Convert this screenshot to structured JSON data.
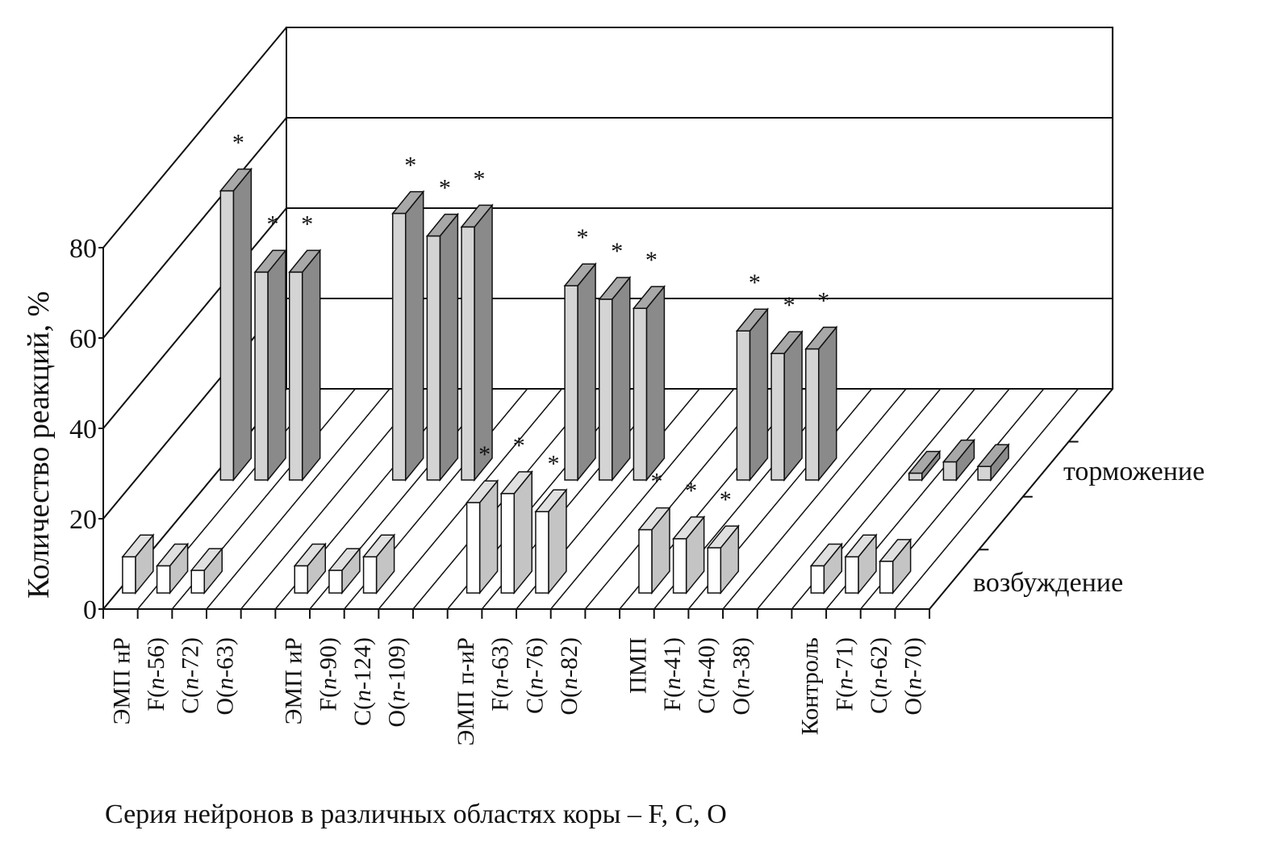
{
  "chart_data": {
    "type": "bar",
    "style": "3d-grouped",
    "ylabel": "Количество реакций, %",
    "xlabel": "Серия нейронов в различных областях коры – F, C, O",
    "ylim": [
      0,
      80
    ],
    "yticks": [
      "0",
      "20",
      "40",
      "60",
      "80"
    ],
    "grid": true,
    "groups": [
      {
        "name": "ЭМП нР",
        "labels": [
          "F(n-56)",
          "C(n-72)",
          "O(n-63)"
        ]
      },
      {
        "name": "ЭМП иР",
        "labels": [
          "F(n-90)",
          "C(n-124)",
          "O(n-109)"
        ]
      },
      {
        "name": "ЭМП п-иР",
        "labels": [
          "F(n-63)",
          "C(n-76)",
          "O(n-82)"
        ]
      },
      {
        "name": "ПМП",
        "labels": [
          "F(n-41)",
          "C(n-40)",
          "O(n-38)"
        ]
      },
      {
        "name": "Контроль",
        "labels": [
          "F(n-71)",
          "C(n-62)",
          "O(n-70)"
        ]
      }
    ],
    "series": [
      {
        "name": "возбуждение",
        "color": "#ffffff",
        "values": [
          [
            8,
            6,
            5
          ],
          [
            6,
            5,
            8
          ],
          [
            20,
            22,
            18
          ],
          [
            14,
            12,
            10
          ],
          [
            6,
            8,
            7
          ]
        ],
        "significant": [
          [
            false,
            false,
            false
          ],
          [
            false,
            false,
            false
          ],
          [
            true,
            true,
            true
          ],
          [
            true,
            true,
            true
          ],
          [
            false,
            false,
            false
          ]
        ]
      },
      {
        "name": "торможение",
        "color": "#d4d4d4",
        "values": [
          [
            64,
            46,
            46
          ],
          [
            59,
            54,
            56
          ],
          [
            43,
            40,
            38
          ],
          [
            33,
            28,
            29
          ],
          [
            1.5,
            4,
            3
          ]
        ],
        "significant": [
          [
            true,
            true,
            true
          ],
          [
            true,
            true,
            true
          ],
          [
            true,
            true,
            true
          ],
          [
            true,
            true,
            true
          ],
          [
            false,
            false,
            false
          ]
        ]
      }
    ],
    "annotation_marker": "*"
  }
}
